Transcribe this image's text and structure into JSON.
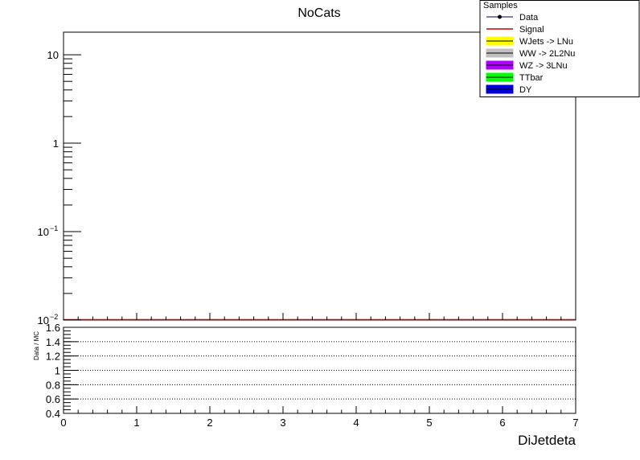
{
  "chart_data": [
    {
      "type": "bar",
      "title": "NoCats",
      "xlabel": "",
      "ylabel": "",
      "yscale": "log",
      "xlim": [
        0,
        7
      ],
      "ylim": [
        0.01,
        18
      ],
      "y_ticks": [
        {
          "value": 10,
          "label": "10"
        },
        {
          "value": 1,
          "label": "1"
        },
        {
          "value": 0.1,
          "label": "10",
          "exponent": "−1"
        },
        {
          "value": 0.01,
          "label": "10",
          "exponent": "−2"
        }
      ],
      "legend": {
        "title": "Samples",
        "position": "top-right",
        "entries": [
          {
            "name": "Data",
            "style": "marker",
            "color": "#00004d"
          },
          {
            "name": "Signal",
            "style": "line",
            "color": "#cc0000"
          },
          {
            "name": "WJets -> LNu",
            "style": "fill",
            "color": "#ffff00"
          },
          {
            "name": "WW -> 2L2Nu",
            "style": "fill",
            "color": "#c0c0c0"
          },
          {
            "name": "WZ -> 3LNu",
            "style": "fill",
            "color": "#b000ff"
          },
          {
            "name": "TTbar",
            "style": "fill",
            "color": "#00ff00"
          },
          {
            "name": "DY",
            "style": "fill",
            "color": "#0000dd"
          }
        ]
      },
      "series": []
    },
    {
      "type": "line",
      "title": "",
      "xlabel": "DiJetdeta",
      "ylabel": "Data / MC",
      "xlim": [
        0,
        7
      ],
      "ylim": [
        0.4,
        1.6
      ],
      "x_ticks": [
        "0",
        "1",
        "2",
        "3",
        "4",
        "5",
        "6",
        "7"
      ],
      "y_ticks": [
        "0.4",
        "0.6",
        "0.8",
        "1",
        "1.2",
        "1.4",
        "1.6"
      ],
      "grid": "horizontal dotted",
      "series": []
    }
  ],
  "colors": {
    "signal_line": "#cc0000",
    "axis": "#000000",
    "background": "#ffffff"
  }
}
